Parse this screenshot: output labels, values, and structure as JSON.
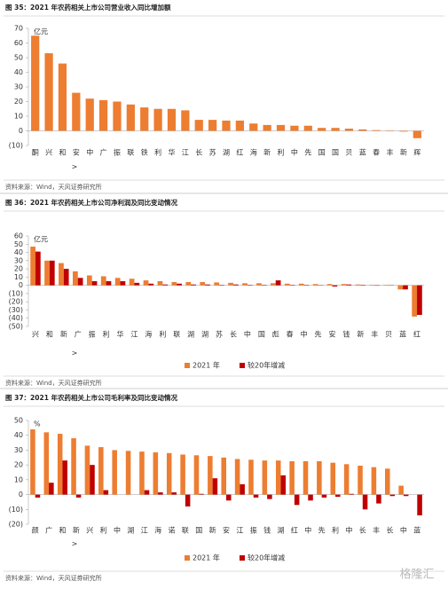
{
  "chart_data": [
    {
      "type": "bar",
      "title": "图 35：2021 年农药相关上市公司营业收入同比增加额",
      "y_unit": "亿元",
      "x_label": ">",
      "categories": [
        "酮",
        "兴",
        "和",
        "安",
        "中",
        "广",
        "振",
        "联",
        "铁",
        "利",
        "华",
        "江",
        "长",
        "苏",
        "湖",
        "红",
        "海",
        "新",
        "利",
        "中",
        "先",
        "国",
        "国",
        "贝",
        "蓝",
        "春",
        "丰",
        "新",
        "辉"
      ],
      "values": [
        65,
        53,
        46,
        26,
        22,
        21,
        20,
        18,
        16,
        15,
        15,
        14,
        7.5,
        7.5,
        7,
        7,
        5,
        4,
        4,
        3.5,
        3.5,
        2,
        2,
        1.5,
        1,
        0.5,
        0.3,
        -0.5,
        -5
      ],
      "color": "#ED7D31",
      "ylim": [
        -10,
        70
      ],
      "yticks": [
        {
          "value": -10,
          "label": "(10)"
        },
        0,
        10,
        20,
        30,
        40,
        50,
        60,
        70
      ],
      "source": "资料来源：Wind，天风证券研究所"
    },
    {
      "type": "bar",
      "title": "图 36：2021 年农药相关上市公司净利润及同比变动情况",
      "y_unit": "亿元",
      "x_label": ">",
      "categories": [
        "兴",
        "和",
        "新",
        "广",
        "振",
        "利",
        "华",
        "江",
        "海",
        "利",
        "联",
        "湖",
        "湖",
        "苏",
        "长",
        "中",
        "国",
        "彪",
        "春",
        "中",
        "先",
        "安",
        "钱",
        "新",
        "丰",
        "贝",
        "蓝",
        "红"
      ],
      "series": [
        {
          "name": "2021 年",
          "color": "#ED7D31",
          "values": [
            47,
            30,
            27,
            17,
            12,
            11,
            9,
            8,
            6,
            5,
            4,
            4,
            4,
            3.5,
            3,
            2.5,
            2.5,
            2.5,
            2,
            2,
            1.5,
            1.5,
            1.5,
            1,
            0.5,
            0.5,
            -5,
            -38
          ]
        },
        {
          "name": "较20年增减",
          "color": "#C00000",
          "values": [
            41,
            30,
            20,
            9,
            5,
            5,
            5,
            3,
            2,
            1,
            2,
            1,
            1,
            0.5,
            1,
            0.5,
            0.5,
            6,
            0.5,
            0.5,
            0.3,
            -1.5,
            1,
            0.5,
            -0.5,
            0.3,
            -5,
            -36
          ]
        }
      ],
      "ylim": [
        -50,
        60
      ],
      "yticks": [
        {
          "value": -50,
          "label": "(50)"
        },
        {
          "value": -40,
          "label": "(40)"
        },
        {
          "value": -30,
          "label": "(30)"
        },
        {
          "value": -20,
          "label": "(20)"
        },
        {
          "value": -10,
          "label": "(10)"
        },
        0,
        10,
        20,
        30,
        40,
        50,
        60
      ],
      "source": "资料来源：Wind，天风证券研究所"
    },
    {
      "type": "bar",
      "title": "图 37：2021 年农药相关上市公司毛利率及同比变动情况",
      "y_unit": "%",
      "x_label": ">",
      "categories": [
        "颜",
        "广",
        "和",
        "新",
        "兴",
        "利",
        "中",
        "湖",
        "江",
        "海",
        "诺",
        "联",
        "国",
        "新",
        "安",
        "江",
        "振",
        "钱",
        "湖",
        "红",
        "中",
        "先",
        "利",
        "中",
        "长",
        "丰",
        "长",
        "中",
        "蓝"
      ],
      "series": [
        {
          "name": "2021 年",
          "color": "#ED7D31",
          "values": [
            44,
            42,
            41,
            38,
            33,
            32,
            30,
            29.5,
            29,
            28.5,
            28,
            27,
            26.5,
            26,
            25,
            24,
            23.5,
            23,
            23,
            22.5,
            22.5,
            22.5,
            21.5,
            20.5,
            19.5,
            18.5,
            17.5,
            6,
            0
          ]
        },
        {
          "name": "较20年增减",
          "color": "#C00000",
          "values": [
            -2,
            8,
            23,
            -2,
            20,
            3,
            0,
            0,
            3,
            1.5,
            1.5,
            -8,
            0.5,
            11,
            -4,
            7,
            -2,
            -3,
            13,
            -7,
            -4,
            -2,
            -1.5,
            0.5,
            -10,
            -6,
            -1,
            -1,
            -14
          ]
        }
      ],
      "ylim": [
        -20,
        50
      ],
      "yticks": [
        {
          "value": -20,
          "label": "(20)"
        },
        {
          "value": -10,
          "label": "(10)"
        },
        0,
        10,
        20,
        30,
        40,
        50
      ],
      "source": "资料来源：Wind，天风证券研究所"
    }
  ],
  "watermark": "格隆汇"
}
